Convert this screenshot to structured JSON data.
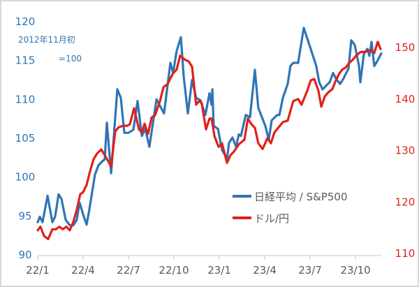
{
  "chart_data": {
    "type": "line",
    "title": "",
    "annotation": [
      "2012年11月初",
      "=100"
    ],
    "x_unit": "months since 22/1",
    "x_ticks": [
      {
        "m": 0,
        "label": "22/1"
      },
      {
        "m": 3,
        "label": "22/4"
      },
      {
        "m": 6,
        "label": "22/7"
      },
      {
        "m": 9,
        "label": "22/10"
      },
      {
        "m": 12,
        "label": "23/1"
      },
      {
        "m": 15,
        "label": "23/4"
      },
      {
        "m": 18,
        "label": "23/7"
      },
      {
        "m": 21,
        "label": "23/10"
      }
    ],
    "xlim": [
      0,
      22.7
    ],
    "y_left": {
      "ticks": [
        "90",
        "95",
        "100",
        "105",
        "110",
        "115",
        "120"
      ],
      "ylim": [
        90,
        120
      ],
      "color": "#2e75b6"
    },
    "y_right": {
      "ticks": [
        "110",
        "120",
        "130",
        "140",
        "150"
      ],
      "ylim": [
        110,
        150
      ],
      "color": "#e0201b"
    },
    "legend_position": "center-right",
    "series": [
      {
        "name": "日経平均 / S&P500",
        "axis": "left",
        "color": "#2e75b6",
        "points": [
          [
            0,
            94.2
          ],
          [
            0.14,
            94.9
          ],
          [
            0.32,
            94.2
          ],
          [
            0.65,
            97.6
          ],
          [
            0.97,
            94.2
          ],
          [
            1.15,
            94.9
          ],
          [
            1.38,
            97.8
          ],
          [
            1.57,
            97.2
          ],
          [
            1.85,
            94.5
          ],
          [
            2.12,
            93.8
          ],
          [
            2.35,
            93.8
          ],
          [
            2.58,
            94.5
          ],
          [
            2.77,
            96.7
          ],
          [
            3.05,
            94.9
          ],
          [
            3.23,
            93.9
          ],
          [
            3.41,
            95.8
          ],
          [
            3.78,
            100.3
          ],
          [
            4.01,
            101.5
          ],
          [
            4.25,
            102.0
          ],
          [
            4.43,
            102.3
          ],
          [
            4.57,
            107.0
          ],
          [
            4.85,
            100.5
          ],
          [
            5.26,
            111.3
          ],
          [
            5.49,
            110.2
          ],
          [
            5.72,
            105.7
          ],
          [
            6.0,
            105.7
          ],
          [
            6.32,
            106.1
          ],
          [
            6.6,
            109.8
          ],
          [
            6.88,
            105.3
          ],
          [
            7.11,
            106.2
          ],
          [
            7.38,
            103.9
          ],
          [
            7.85,
            110.0
          ],
          [
            8.35,
            108.2
          ],
          [
            8.77,
            114.7
          ],
          [
            8.95,
            113.4
          ],
          [
            9.18,
            116.2
          ],
          [
            9.46,
            118.0
          ],
          [
            9.65,
            112.9
          ],
          [
            9.92,
            108.2
          ],
          [
            10.2,
            112.5
          ],
          [
            10.47,
            110.2
          ],
          [
            10.75,
            109.9
          ],
          [
            11.08,
            108.0
          ],
          [
            11.35,
            110.8
          ],
          [
            11.49,
            109.3
          ],
          [
            11.54,
            111.3
          ],
          [
            11.63,
            106.6
          ],
          [
            11.91,
            106.2
          ],
          [
            12.18,
            103.5
          ],
          [
            12.51,
            102.4
          ],
          [
            12.64,
            104.4
          ],
          [
            12.87,
            105.1
          ],
          [
            13.11,
            103.9
          ],
          [
            13.29,
            105.5
          ],
          [
            13.43,
            105.3
          ],
          [
            13.75,
            108.0
          ],
          [
            14.03,
            107.7
          ],
          [
            14.35,
            113.8
          ],
          [
            14.58,
            108.9
          ],
          [
            15.04,
            106.6
          ],
          [
            15.27,
            104.8
          ],
          [
            15.46,
            107.3
          ],
          [
            15.83,
            108.0
          ],
          [
            15.97,
            108.0
          ],
          [
            16.2,
            110.2
          ],
          [
            16.52,
            112.0
          ],
          [
            16.7,
            114.3
          ],
          [
            16.89,
            114.7
          ],
          [
            17.21,
            114.7
          ],
          [
            17.58,
            119.2
          ],
          [
            18.04,
            116.5
          ],
          [
            18.41,
            114.3
          ],
          [
            18.6,
            112.2
          ],
          [
            18.83,
            111.3
          ],
          [
            19.29,
            112.2
          ],
          [
            19.52,
            113.4
          ],
          [
            19.7,
            112.7
          ],
          [
            19.98,
            112.0
          ],
          [
            20.21,
            112.7
          ],
          [
            20.54,
            114.0
          ],
          [
            20.72,
            117.6
          ],
          [
            20.95,
            117.0
          ],
          [
            21.23,
            114.3
          ],
          [
            21.32,
            112.2
          ],
          [
            21.55,
            115.8
          ],
          [
            21.78,
            116.5
          ],
          [
            21.92,
            115.6
          ],
          [
            22.06,
            117.4
          ],
          [
            22.24,
            114.3
          ],
          [
            22.43,
            114.9
          ],
          [
            22.7,
            115.9
          ]
        ]
      },
      {
        "name": "ドル/円",
        "axis": "right",
        "color": "#e0201b",
        "points": [
          [
            0,
            114.5
          ],
          [
            0.18,
            115.2
          ],
          [
            0.42,
            113.4
          ],
          [
            0.69,
            112.8
          ],
          [
            0.97,
            114.7
          ],
          [
            1.2,
            114.7
          ],
          [
            1.43,
            115.2
          ],
          [
            1.66,
            114.7
          ],
          [
            1.89,
            115.2
          ],
          [
            2.12,
            114.5
          ],
          [
            2.35,
            116.1
          ],
          [
            2.58,
            118.5
          ],
          [
            2.81,
            121.5
          ],
          [
            3.0,
            121.9
          ],
          [
            3.23,
            123.3
          ],
          [
            3.46,
            126.0
          ],
          [
            3.69,
            128.3
          ],
          [
            3.92,
            129.4
          ],
          [
            4.2,
            130.2
          ],
          [
            4.43,
            129.1
          ],
          [
            4.85,
            126.9
          ],
          [
            5.12,
            133.7
          ],
          [
            5.35,
            134.5
          ],
          [
            5.63,
            134.8
          ],
          [
            5.91,
            134.8
          ],
          [
            6.09,
            135.1
          ],
          [
            6.37,
            138.2
          ],
          [
            6.69,
            134.1
          ],
          [
            6.88,
            133.5
          ],
          [
            7.06,
            135.2
          ],
          [
            7.29,
            133.2
          ],
          [
            7.52,
            136.4
          ],
          [
            7.75,
            136.8
          ],
          [
            8.08,
            139.6
          ],
          [
            8.31,
            142.3
          ],
          [
            8.58,
            142.9
          ],
          [
            8.95,
            145.0
          ],
          [
            9.18,
            145.7
          ],
          [
            9.41,
            148.4
          ],
          [
            9.69,
            147.7
          ],
          [
            9.97,
            147.3
          ],
          [
            10.2,
            146.3
          ],
          [
            10.47,
            138.9
          ],
          [
            10.66,
            139.6
          ],
          [
            10.84,
            139.2
          ],
          [
            11.12,
            134.1
          ],
          [
            11.35,
            136.2
          ],
          [
            11.49,
            136.2
          ],
          [
            11.68,
            132.8
          ],
          [
            11.95,
            130.7
          ],
          [
            12.18,
            131.4
          ],
          [
            12.51,
            127.6
          ],
          [
            12.74,
            129.1
          ],
          [
            12.97,
            129.8
          ],
          [
            13.29,
            131.2
          ],
          [
            13.66,
            132.1
          ],
          [
            13.89,
            136.2
          ],
          [
            14.12,
            135.1
          ],
          [
            14.35,
            134.4
          ],
          [
            14.58,
            131.4
          ],
          [
            14.86,
            130.3
          ],
          [
            15.18,
            132.4
          ],
          [
            15.41,
            131.4
          ],
          [
            15.64,
            133.5
          ],
          [
            15.92,
            134.5
          ],
          [
            16.2,
            135.5
          ],
          [
            16.52,
            135.8
          ],
          [
            16.89,
            139.6
          ],
          [
            17.21,
            140.0
          ],
          [
            17.44,
            138.9
          ],
          [
            17.81,
            141.6
          ],
          [
            18.04,
            143.6
          ],
          [
            18.27,
            143.9
          ],
          [
            18.55,
            141.6
          ],
          [
            18.74,
            138.5
          ],
          [
            18.97,
            140.5
          ],
          [
            19.2,
            141.3
          ],
          [
            19.47,
            141.9
          ],
          [
            19.7,
            143.6
          ],
          [
            19.94,
            145.0
          ],
          [
            20.12,
            145.7
          ],
          [
            20.35,
            146.1
          ],
          [
            20.58,
            147.0
          ],
          [
            20.81,
            147.6
          ],
          [
            21.04,
            148.4
          ],
          [
            21.32,
            149.1
          ],
          [
            21.69,
            149.2
          ],
          [
            21.97,
            149.5
          ],
          [
            22.24,
            148.9
          ],
          [
            22.47,
            151.1
          ],
          [
            22.66,
            149.7
          ]
        ]
      }
    ]
  }
}
